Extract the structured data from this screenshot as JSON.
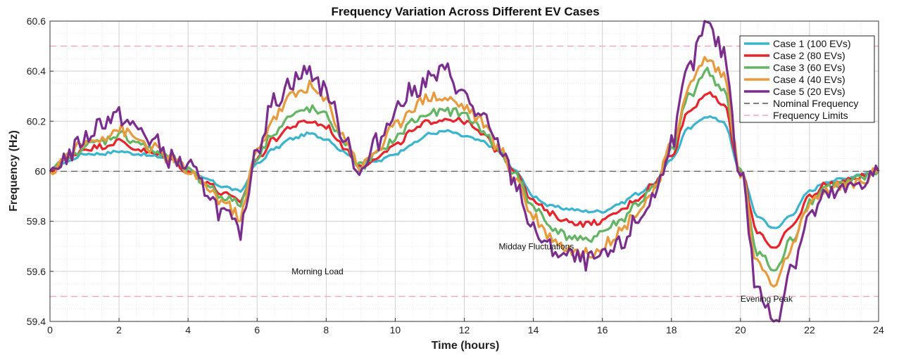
{
  "chart_data": {
    "type": "line",
    "title": "Frequency Variation Across Different EV Cases",
    "xlabel": "Time (hours)",
    "ylabel": "Frequency (Hz)",
    "xlim": [
      0,
      24
    ],
    "ylim": [
      59.4,
      60.6
    ],
    "xticks": [
      0,
      2,
      4,
      6,
      8,
      10,
      12,
      14,
      16,
      18,
      20,
      22,
      24
    ],
    "yticks": [
      59.4,
      59.6,
      59.8,
      60,
      60.2,
      60.4,
      60.6
    ],
    "ytick_labels": [
      "59.4",
      "59.6",
      "59.8",
      "60",
      "60.2",
      "60.4",
      "60.6"
    ],
    "grid": true,
    "legend_position": "top-right",
    "x": [
      0,
      0.5,
      1,
      1.5,
      2,
      2.5,
      3,
      3.5,
      4,
      4.5,
      5,
      5.5,
      6,
      6.5,
      7,
      7.5,
      8,
      8.5,
      9,
      9.5,
      10,
      10.5,
      11,
      11.5,
      12,
      12.5,
      13,
      13.5,
      14,
      14.5,
      15,
      15.5,
      16,
      16.5,
      17,
      17.5,
      18,
      18.5,
      19,
      19.5,
      20,
      20.5,
      21,
      21.5,
      22,
      22.5,
      23,
      23.5,
      24
    ],
    "series": [
      {
        "name": "Case 1 (100 EVs)",
        "color": "#3bb4cf",
        "values": [
          60.0,
          60.04,
          60.07,
          60.07,
          60.08,
          60.07,
          60.06,
          60.05,
          60.0,
          59.97,
          59.94,
          59.92,
          60.03,
          60.09,
          60.13,
          60.15,
          60.13,
          60.08,
          60.02,
          60.04,
          60.07,
          60.11,
          60.15,
          60.16,
          60.14,
          60.12,
          60.08,
          60.0,
          59.9,
          59.86,
          59.85,
          59.84,
          59.84,
          59.87,
          59.91,
          59.95,
          60.05,
          60.17,
          60.22,
          60.2,
          60.0,
          59.82,
          59.77,
          59.83,
          59.92,
          59.96,
          59.97,
          59.99,
          60.0
        ]
      },
      {
        "name": "Case 2 (80 EVs)",
        "color": "#e8232a",
        "values": [
          60.0,
          60.05,
          60.09,
          60.1,
          60.12,
          60.09,
          60.07,
          60.05,
          60.0,
          59.96,
          59.91,
          59.88,
          60.05,
          60.13,
          60.18,
          60.2,
          60.18,
          60.1,
          60.02,
          60.06,
          60.1,
          60.16,
          60.2,
          60.21,
          60.2,
          60.15,
          60.08,
          60.0,
          59.88,
          59.83,
          59.8,
          59.79,
          59.8,
          59.84,
          59.89,
          59.95,
          60.07,
          60.24,
          60.31,
          60.27,
          60.0,
          59.76,
          59.69,
          59.78,
          59.9,
          59.95,
          59.96,
          59.98,
          60.0
        ]
      },
      {
        "name": "Case 3 (60 EVs)",
        "color": "#62b562",
        "values": [
          60.0,
          60.05,
          60.1,
          60.12,
          60.15,
          60.12,
          60.08,
          60.05,
          60.0,
          59.95,
          59.9,
          59.87,
          60.06,
          60.16,
          60.22,
          60.25,
          60.22,
          60.12,
          60.02,
          60.07,
          60.13,
          60.2,
          60.23,
          60.24,
          60.23,
          60.17,
          60.08,
          59.98,
          59.86,
          59.78,
          59.74,
          59.72,
          59.76,
          59.8,
          59.87,
          59.93,
          60.08,
          60.3,
          60.4,
          60.33,
          60.0,
          59.68,
          59.6,
          59.73,
          59.88,
          59.94,
          59.95,
          59.97,
          60.0
        ]
      },
      {
        "name": "Case 4 (40 EVs)",
        "color": "#e89a3c",
        "values": [
          60.0,
          60.06,
          60.11,
          60.14,
          60.17,
          60.13,
          60.09,
          60.05,
          60.0,
          59.94,
          59.88,
          59.82,
          60.08,
          60.22,
          60.3,
          60.34,
          60.28,
          60.14,
          60.02,
          60.09,
          60.18,
          60.26,
          60.3,
          60.29,
          60.26,
          60.2,
          60.09,
          59.97,
          59.82,
          59.74,
          59.69,
          59.67,
          59.7,
          59.76,
          59.84,
          59.92,
          60.1,
          60.34,
          60.45,
          60.39,
          60.0,
          59.63,
          59.54,
          59.7,
          59.86,
          59.93,
          59.94,
          59.96,
          60.0
        ]
      },
      {
        "name": "Case 5 (20 EVs)",
        "color": "#7b2d8e",
        "values": [
          60.0,
          60.06,
          60.13,
          60.2,
          60.22,
          60.17,
          60.12,
          60.05,
          60.02,
          59.93,
          59.83,
          59.76,
          60.1,
          60.28,
          60.36,
          60.4,
          60.32,
          60.15,
          59.99,
          60.12,
          60.25,
          60.32,
          60.37,
          60.4,
          60.3,
          60.21,
          60.1,
          59.95,
          59.76,
          59.69,
          59.66,
          59.64,
          59.65,
          59.7,
          59.8,
          59.9,
          60.12,
          60.4,
          60.58,
          60.48,
          60.0,
          59.52,
          59.4,
          59.63,
          59.82,
          59.9,
          59.92,
          59.96,
          60.0
        ]
      },
      {
        "name": "Nominal Frequency",
        "color": "#555555",
        "style": "dashed",
        "constant": 60
      },
      {
        "name": "Frequency Limits",
        "color": "#f2a7b3",
        "style": "dashed",
        "constants": [
          59.5,
          60.5
        ]
      }
    ],
    "annotations": [
      {
        "text": "Morning Load",
        "x": 7,
        "y": 59.6
      },
      {
        "text": "Midday Fluctuations",
        "x": 13,
        "y": 59.7
      },
      {
        "text": "Evening Peak",
        "x": 20,
        "y": 59.49
      }
    ]
  }
}
